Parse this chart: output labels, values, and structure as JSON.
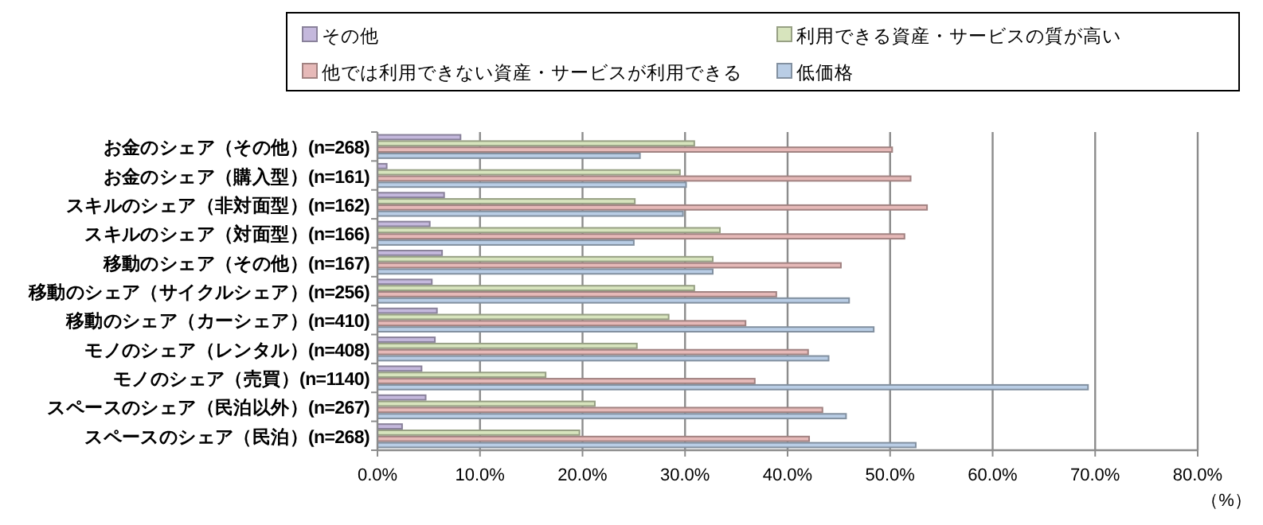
{
  "chart_data": {
    "type": "bar",
    "orientation": "horizontal",
    "xlabel": "（%）",
    "categories": [
      "お金のシェア（その他）(n=268)",
      "お金のシェア（購入型）(n=161)",
      "スキルのシェア（非対面型）(n=162)",
      "スキルのシェア（対面型）(n=166)",
      "移動のシェア（その他）(n=167)",
      "移動のシェア（サイクルシェア）(n=256)",
      "移動のシェア（カーシェア）(n=410)",
      "モノのシェア（レンタル）(n=408)",
      "モノのシェア（売買）(n=1140)",
      "スペースのシェア（民泊以外）(n=267)",
      "スペースのシェア（民泊）(n=268)"
    ],
    "series": [
      {
        "name": "その他",
        "color": "#c4b8dc",
        "values": [
          8.1,
          0.9,
          6.5,
          5.1,
          6.3,
          5.3,
          5.8,
          5.6,
          4.3,
          4.7,
          2.4
        ]
      },
      {
        "name": "利用できる資産・サービスの質が高い",
        "color": "#d7e4bd",
        "values": [
          30.9,
          29.5,
          25.1,
          33.4,
          32.7,
          30.9,
          28.4,
          25.3,
          16.4,
          21.2,
          19.7
        ]
      },
      {
        "name": "他では利用できない資産・サービスが利用できる",
        "color": "#e6b9b8",
        "values": [
          50.2,
          52.0,
          53.6,
          51.4,
          45.2,
          38.9,
          35.9,
          42.0,
          36.8,
          43.4,
          42.1
        ]
      },
      {
        "name": "低価格",
        "color": "#b9cde5",
        "values": [
          25.6,
          30.1,
          29.8,
          25.0,
          32.7,
          46.0,
          48.4,
          44.0,
          69.3,
          45.7,
          52.5
        ]
      }
    ],
    "xlim": [
      0,
      80
    ],
    "xticks": [
      {
        "value": 0,
        "label": "0.0%"
      },
      {
        "value": 10,
        "label": "10.0%"
      },
      {
        "value": 20,
        "label": "20.0%"
      },
      {
        "value": 30,
        "label": "30.0%"
      },
      {
        "value": 40,
        "label": "40.0%"
      },
      {
        "value": 50,
        "label": "50.0%"
      },
      {
        "value": 60,
        "label": "60.0%"
      },
      {
        "value": 70,
        "label": "70.0%"
      },
      {
        "value": 80,
        "label": "80.0%"
      }
    ],
    "grid": "x",
    "legend": "top"
  }
}
